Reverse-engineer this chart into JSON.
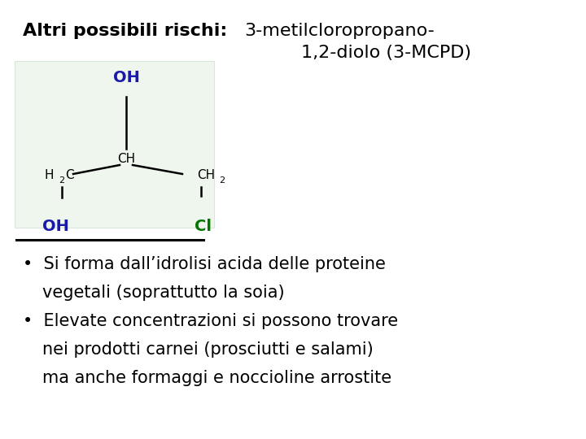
{
  "bg_color": "#ffffff",
  "color_black": "#000000",
  "color_blue": "#1a1aaa",
  "color_green": "#007700",
  "font_size_title": 16,
  "font_size_body": 15,
  "font_size_mol": 11,
  "font_size_mol_sub": 8,
  "font_family_title": "Comic Sans MS",
  "font_family_mol": "Arial",
  "title_bold": "Altri possibili rischi: ",
  "title_normal1": "3-metilcloropropano-",
  "title_normal2": "1,2-diolo (3-MCPD)",
  "bullet1_line1": "Si forma dall’idrolisi acida delle proteine",
  "bullet1_line2": "vegetali (soprattutto la soia)",
  "bullet2_line1": "Elevate concentrazioni si possono trovare",
  "bullet2_line2": "nei prodotti carnei (prosciutti e salami)",
  "bullet2_line3": "ma anche formaggi e noccioline arrostite",
  "mol_bg": "#eef6ee"
}
